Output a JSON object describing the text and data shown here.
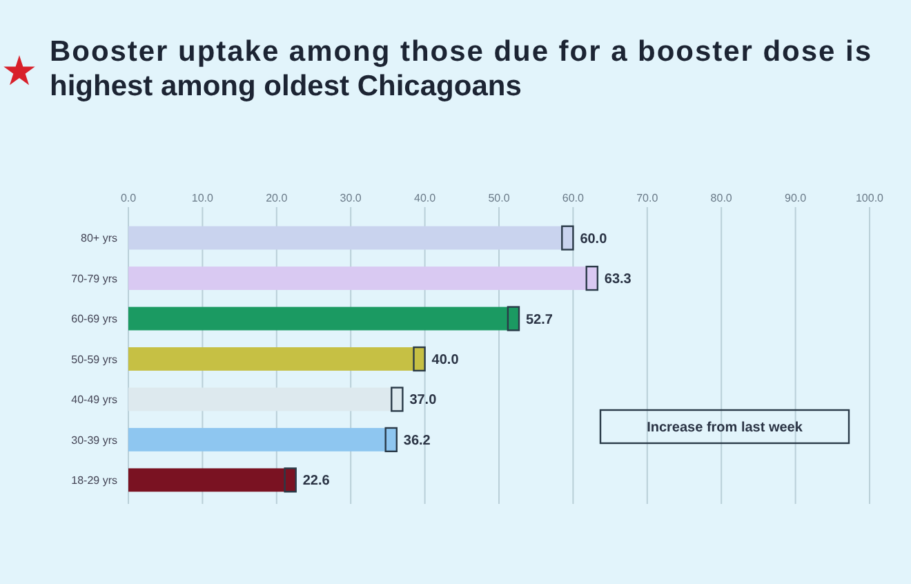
{
  "chart_data": {
    "type": "bar",
    "orientation": "horizontal",
    "stacked": true,
    "title": "Booster uptake among those due for a booster dose is highest among oldest Chicagoans",
    "categories": [
      "80+ yrs",
      "70-79 yrs",
      "60-69 yrs",
      "50-59 yrs",
      "40-49 yrs",
      "30-39 yrs",
      "18-29 yrs"
    ],
    "series": [
      {
        "colors": [
          "#c9d3ee",
          "#d9c9f2",
          "#1b9a62",
          "#c6c044",
          "#dde9ee",
          "#8ec6f0",
          "#7a1222"
        ],
        "values": [
          58.5,
          61.8,
          51.2,
          38.5,
          35.5,
          34.7,
          21.1
        ]
      },
      {
        "name": "Increase from last week",
        "colors": [
          "#c9d3ee",
          "#d9c9f2",
          "#1b9a62",
          "#c6c044",
          "#dde9ee",
          "#8ec6f0",
          "#7a1222"
        ],
        "values": [
          1.5,
          1.5,
          1.5,
          1.5,
          1.5,
          1.5,
          1.5
        ]
      }
    ],
    "totals": [
      "60.0",
      "63.3",
      "52.7",
      "40.0",
      "37.0",
      "36.2",
      "22.6"
    ],
    "xlim": [
      0,
      100
    ],
    "xticks": [
      {
        "value": 0,
        "label": "0.0"
      },
      {
        "value": 10,
        "label": "10.0"
      },
      {
        "value": 20,
        "label": "20.0"
      },
      {
        "value": 30,
        "label": "30.0"
      },
      {
        "value": 40,
        "label": "40.0"
      },
      {
        "value": 50,
        "label": "50.0"
      },
      {
        "value": 60,
        "label": "60.0"
      },
      {
        "value": 70,
        "label": "70.0"
      },
      {
        "value": 80,
        "label": "80.0"
      },
      {
        "value": 90,
        "label": "90.0"
      },
      {
        "value": 100,
        "label": "100.0"
      }
    ],
    "grid": "x",
    "legend": "bottom right"
  }
}
